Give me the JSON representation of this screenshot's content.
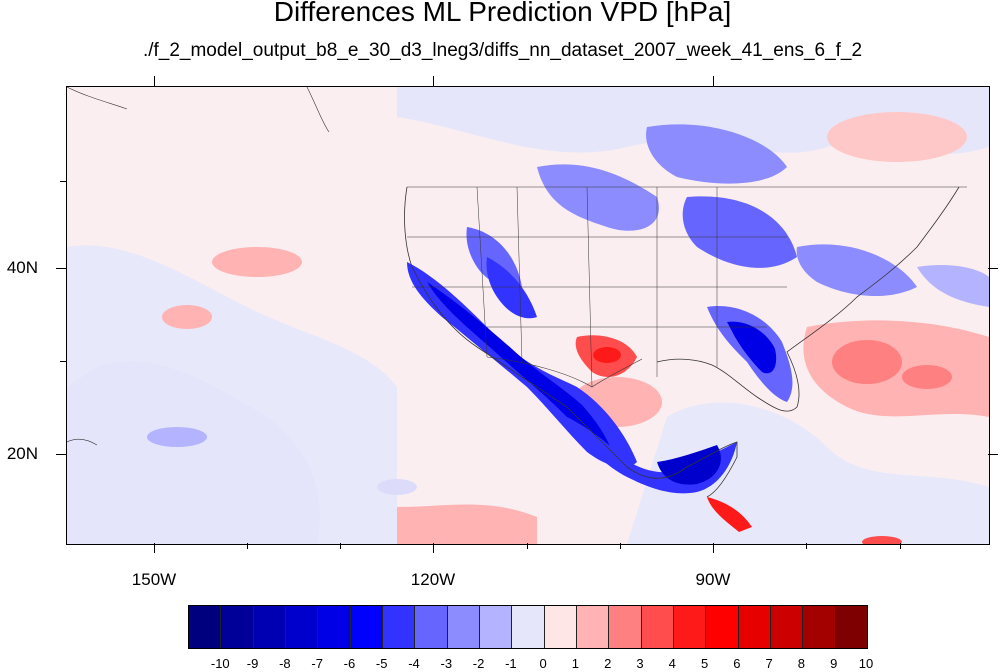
{
  "title": "Differences ML Prediction VPD [hPa]",
  "subtitle": "./f_2_model_output_b8_e_30_d3_lneg3/diffs_nn_dataset_2007_week_41_ens_6_f_2",
  "axes": {
    "y_labels": [
      "40N",
      "20N"
    ],
    "x_labels": [
      "150W",
      "120W",
      "90W"
    ]
  },
  "colorbar": {
    "labels": [
      "-10",
      "-9",
      "-8",
      "-7",
      "-6",
      "-5",
      "-4",
      "-3",
      "-2",
      "-1",
      "0",
      "1",
      "2",
      "3",
      "4",
      "5",
      "6",
      "7",
      "8",
      "9",
      "10"
    ],
    "colors": [
      "#00007f",
      "#000099",
      "#0000b3",
      "#0000cc",
      "#0000e6",
      "#0000ff",
      "#3333ff",
      "#6666ff",
      "#8c8cff",
      "#b3b3ff",
      "#e6e6fa",
      "#ffe6e6",
      "#ffb3b3",
      "#ff8080",
      "#ff4d4d",
      "#ff1a1a",
      "#ff0000",
      "#e60000",
      "#cc0000",
      "#a30000",
      "#7f0000"
    ]
  },
  "colors": {
    "background_field": "#f8f8fe",
    "weak_negative": "#dcdcfa",
    "moderate_negative": "#8c8cff",
    "strong_negative": "#0000e6",
    "weak_positive": "#ffe6e6",
    "moderate_positive": "#ffb3b3",
    "strong_positive": "#ff1a1a"
  }
}
